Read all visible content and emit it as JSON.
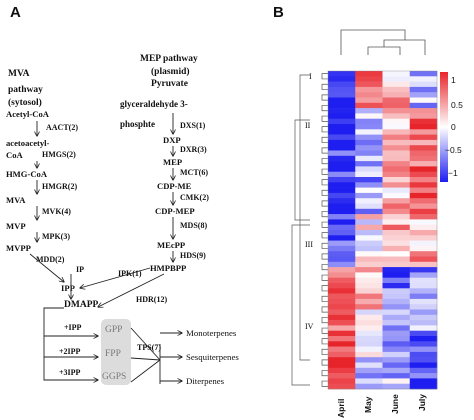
{
  "panel_a": {
    "letter": "A",
    "mva": {
      "title_1": "MVA",
      "title_2": "pathway",
      "title_3": "(sytosol)",
      "steps": [
        "Acetyl-CoA",
        "acetoacetyl-",
        "CoA",
        "HMG-CoA",
        "MVA",
        "MVP",
        "MVPP",
        "IPP",
        "DMAPP"
      ],
      "enzymes": [
        "AACT(2)",
        "HMGS(2)",
        "HMGR(2)",
        "MVK(4)",
        "MPK(3)",
        "MDD(2)",
        "IP"
      ]
    },
    "mep": {
      "title_1": "MEP pathway",
      "title_2": "(plasmid)",
      "pyruvate": "Pyruvate",
      "g3p_1": "glyceraldehyde 3-",
      "g3p_2": "phosphte",
      "steps": [
        "DXP",
        "MEP",
        "CDP-ME",
        "CDP-MEP",
        "MEcPP",
        "HMPBPP"
      ],
      "enzymes": [
        "DXS(1)",
        "DXR(3)",
        "MCT(6)",
        "CMK(2)",
        "MDS(8)",
        "HDS(9)"
      ]
    },
    "ipk": "IPK(1)",
    "hdr": "HDR(12)",
    "additions": [
      "+IPP",
      "+2IPP",
      "+3IPP"
    ],
    "prenyl": [
      "GPP",
      "FPP",
      "GGPS"
    ],
    "tps": "TPS(7)",
    "products": [
      "Monoterpenes",
      "Sesquiterpenes",
      "Diterpenes"
    ]
  },
  "panel_b": {
    "letter": "B",
    "columns": [
      "April",
      "May",
      "June",
      "July"
    ],
    "clusters": [
      "I",
      "II",
      "III",
      "IV"
    ],
    "colorbar": {
      "ticks": [
        "1",
        "0.5",
        "0",
        "−0.5",
        "−1"
      ],
      "high_color": "#e8242b",
      "mid_color": "#ffffff",
      "low_color": "#1e1ef0"
    }
  }
}
